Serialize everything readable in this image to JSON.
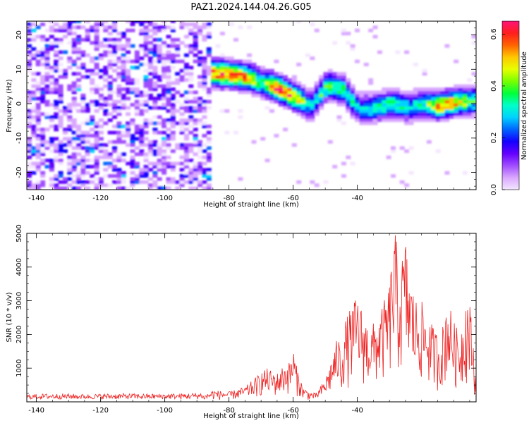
{
  "title": "PAZ1.2024.144.04.26.G05",
  "colors": {
    "snr_line": "#ee2222",
    "colormap": [
      "#f4e6ff",
      "#d9a8ff",
      "#a04cff",
      "#6400ff",
      "#1400ff",
      "#0064ff",
      "#00d2ff",
      "#00ffc8",
      "#00ff3c",
      "#78ff00",
      "#e6ff00",
      "#ffc800",
      "#ff6400",
      "#ff1e1e",
      "#ff1478"
    ]
  },
  "chart_data": [
    {
      "type": "heatmap",
      "xlabel": "Height of straight line (km)",
      "ylabel": "Frequency (Hz)",
      "xlim": [
        -143,
        -3
      ],
      "ylim": [
        -25,
        24
      ],
      "xticks": [
        -140,
        -120,
        -100,
        -80,
        -60,
        -40
      ],
      "yticks": [
        -20,
        -10,
        0,
        10,
        20
      ],
      "grid": false,
      "colorbar": {
        "label": "Normalized spectral amplitude",
        "range": [
          0,
          0.65
        ],
        "ticks": [
          "0.0",
          "0.2",
          "0.4",
          "0.6"
        ]
      },
      "ridge": {
        "x": [
          -86,
          -80,
          -75,
          -70,
          -65,
          -60,
          -55,
          -50,
          -45,
          -40,
          -35,
          -30,
          -25,
          -20,
          -15,
          -10,
          -5,
          -3
        ],
        "y": [
          8.5,
          8,
          7.5,
          5.5,
          4,
          1.5,
          -1,
          5,
          3.5,
          -2,
          -1.5,
          -0.5,
          -1.5,
          -0.5,
          -1,
          0,
          0.5,
          0.5
        ],
        "amplitude": [
          0.6,
          0.62,
          0.55,
          0.4,
          0.65,
          0.58,
          0.3,
          0.45,
          0.4,
          0.3,
          0.35,
          0.4,
          0.3,
          0.35,
          0.6,
          0.55,
          0.4,
          0.35
        ]
      },
      "noise_region_x": [
        -143,
        -86
      ],
      "noise_amplitude_range": [
        0,
        0.2
      ]
    },
    {
      "type": "line",
      "xlabel": "Height of straight line (km)",
      "ylabel": "SNR (10 * v/v)",
      "xlim": [
        -143,
        -3
      ],
      "ylim": [
        0,
        5000
      ],
      "xticks": [
        -140,
        -120,
        -100,
        -80,
        -60,
        -40
      ],
      "yticks": [
        1000,
        2000,
        3000,
        4000,
        5000
      ],
      "grid": false,
      "series": [
        {
          "x": [
            -143,
            -135,
            -125,
            -115,
            -105,
            -95,
            -88,
            -85,
            -80,
            -75,
            -72,
            -70,
            -68,
            -65,
            -63,
            -61,
            -60,
            -59,
            -57,
            -55,
            -53,
            -52,
            -50,
            -48,
            -46,
            -45,
            -44,
            -42,
            -40,
            -38,
            -36,
            -34,
            -32,
            -30,
            -29,
            -28,
            -27,
            -26,
            -25,
            -24,
            -22,
            -20,
            -18,
            -16,
            -14,
            -12,
            -10,
            -8,
            -6,
            -5,
            -4,
            -3
          ],
          "values": [
            120,
            150,
            130,
            150,
            140,
            150,
            180,
            350,
            300,
            450,
            700,
            900,
            1000,
            850,
            1100,
            1200,
            1650,
            1100,
            450,
            300,
            250,
            380,
            700,
            1300,
            2000,
            1500,
            2400,
            2800,
            3200,
            2600,
            2200,
            2500,
            2900,
            3500,
            4800,
            5050,
            3800,
            4400,
            4900,
            4000,
            3100,
            3000,
            2500,
            2200,
            1900,
            3200,
            2400,
            2000,
            3300,
            3000,
            2000,
            500
          ]
        }
      ]
    }
  ]
}
